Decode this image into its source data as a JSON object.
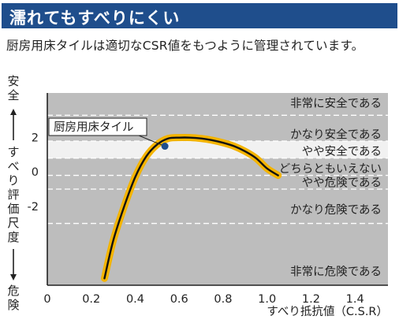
{
  "header": {
    "title": "濡れてもすべりにくい",
    "subtitle": "厨房用床タイルは適切なCSR値をもつように管理されています。"
  },
  "colors": {
    "banner": "#1f4e8c",
    "plot_background": "#bdbdbd",
    "highlight_band": "#f1f1f1",
    "curve_outline": "#f4b400",
    "curve_core": "#111111",
    "marker": "#1f4e8c"
  },
  "chart_data": {
    "type": "line",
    "title": "",
    "xlabel": "すべり抵抗値（C.S.R）",
    "ylabel": "すべり評価尺度",
    "y_top_label": "安全",
    "y_bottom_label": "危険",
    "xlim": [
      0,
      1.55
    ],
    "ylim": [
      -6.6,
      4.6
    ],
    "x_ticks": [
      "0",
      "0.2",
      "0.4",
      "0.6",
      "0.8",
      "1.0",
      "1.2",
      "1.4"
    ],
    "x_tick_values": [
      0,
      0.2,
      0.4,
      0.6,
      0.8,
      1.0,
      1.2,
      1.4
    ],
    "y_ticks": [
      "2",
      "0",
      "-2"
    ],
    "y_tick_values": [
      2,
      0,
      -2
    ],
    "grid": "dashed horizontal band boundaries",
    "series": [
      {
        "name": "",
        "x": [
          0.26,
          0.3,
          0.35,
          0.4,
          0.45,
          0.5,
          0.55,
          0.6,
          0.65,
          0.7,
          0.75,
          0.8,
          0.85,
          0.9,
          0.95,
          1.0,
          1.05
        ],
        "y": [
          -6.2,
          -4.0,
          -2.0,
          -0.3,
          0.9,
          1.6,
          1.95,
          2.0,
          2.0,
          1.95,
          1.85,
          1.7,
          1.5,
          1.2,
          0.8,
          0.2,
          -0.2
        ]
      }
    ],
    "highlight_band": {
      "label": "やや安全である",
      "y_range": [
        0.8,
        1.8
      ]
    },
    "bands": [
      {
        "label": "非常に安全である",
        "y": 4.0
      },
      {
        "label": "かなり安全である",
        "y": 2.2
      },
      {
        "label": "やや安全である",
        "y": 1.2
      },
      {
        "label": "どちらともいえない",
        "y": 0.2
      },
      {
        "label": "やや危険である",
        "y": -0.6
      },
      {
        "label": "かなり危険である",
        "y": -2.2
      },
      {
        "label": "非常に危険である",
        "y": -5.8
      }
    ],
    "band_boundaries": [
      3.3,
      1.8,
      0.8,
      -0.2,
      -1.0,
      -3.0
    ],
    "annotation": {
      "label": "厨房用床タイル",
      "x": 0.55,
      "y": 1.4
    }
  }
}
